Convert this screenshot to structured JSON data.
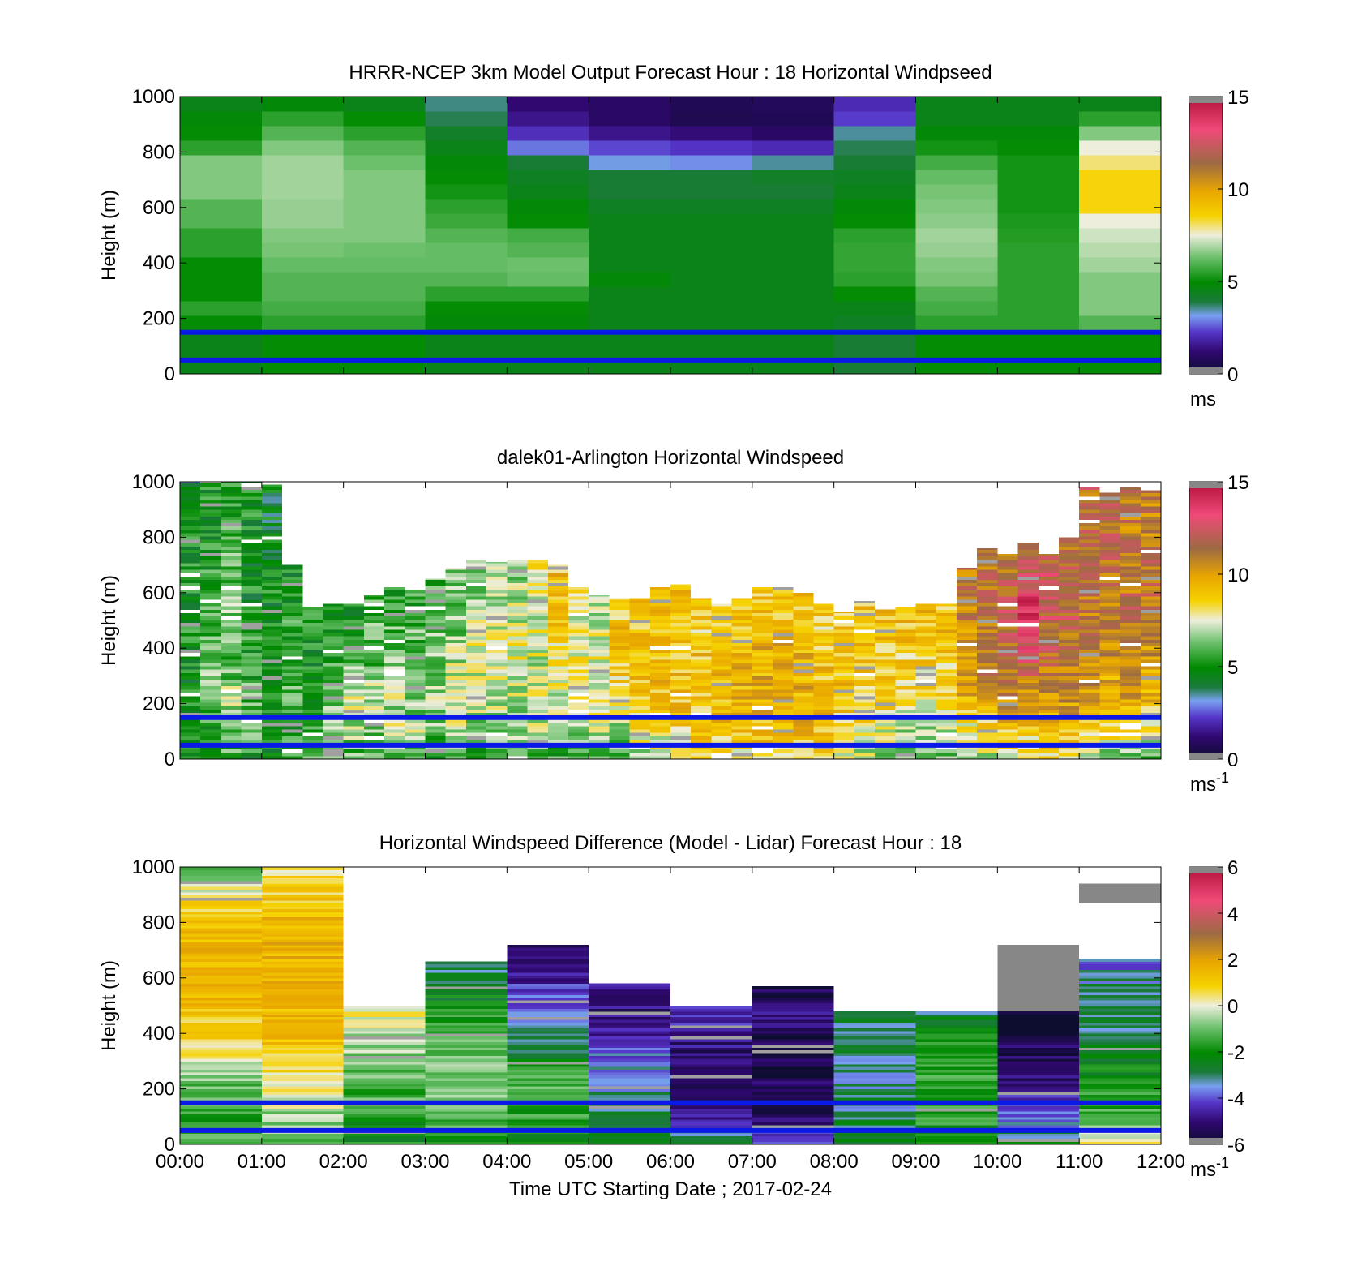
{
  "chart_data": [
    {
      "type": "heatmap",
      "title": "HRRR-NCEP 3km Model Output   Forecast Hour : 18 Horizontal Windpseed",
      "xlabel": "",
      "ylabel": "Height (m)",
      "xlim": [
        0,
        12
      ],
      "ylim": [
        0,
        1000
      ],
      "yticks": [
        "0",
        "200",
        "400",
        "600",
        "800",
        "1000"
      ],
      "colorbar": {
        "ticks": [
          "0",
          "5",
          "10",
          "15"
        ],
        "range": [
          0,
          15
        ],
        "unit": "ms"
      },
      "reference_lines_m": [
        150,
        50
      ],
      "grid": false,
      "hour_columns": [
        [
          4.5,
          4.5,
          4.5,
          5.0,
          5.5,
          5.0,
          5.0,
          5.0,
          5.5,
          5.5,
          6.0,
          6.0,
          6.5,
          6.5,
          6.5,
          5.5,
          5.0,
          4.8,
          4.5
        ],
        [
          5.0,
          5.0,
          5.0,
          5.5,
          5.8,
          6.0,
          6.0,
          6.2,
          6.4,
          6.5,
          6.7,
          6.7,
          6.8,
          6.8,
          6.8,
          6.5,
          6.0,
          5.5,
          4.8
        ],
        [
          5.0,
          5.0,
          5.0,
          5.5,
          5.8,
          6.0,
          6.0,
          6.2,
          6.3,
          6.5,
          6.5,
          6.5,
          6.5,
          6.5,
          6.3,
          6.0,
          5.5,
          5.0,
          4.5
        ],
        [
          4.5,
          4.5,
          4.5,
          4.8,
          5.0,
          5.5,
          6.0,
          6.2,
          6.2,
          6.0,
          5.7,
          5.5,
          5.2,
          5.0,
          4.8,
          4.5,
          4.2,
          3.8,
          3.6
        ],
        [
          4.5,
          4.5,
          4.5,
          4.8,
          5.0,
          5.5,
          6.2,
          6.3,
          6.0,
          5.8,
          5.0,
          4.8,
          4.5,
          4.3,
          4.0,
          2.8,
          2.1,
          1.5,
          1.2
        ],
        [
          4.5,
          4.5,
          4.5,
          4.5,
          4.5,
          4.5,
          4.8,
          4.5,
          4.5,
          4.5,
          4.5,
          4.3,
          4.0,
          4.0,
          3.2,
          2.4,
          1.5,
          1.0,
          1.0
        ],
        [
          4.5,
          4.5,
          4.5,
          4.5,
          4.5,
          4.5,
          4.5,
          4.5,
          4.5,
          4.5,
          4.5,
          4.3,
          4.0,
          4.0,
          3.0,
          2.2,
          1.3,
          0.6,
          0.7
        ],
        [
          4.5,
          4.5,
          4.5,
          4.5,
          4.5,
          4.5,
          4.5,
          4.5,
          4.5,
          4.5,
          4.5,
          4.3,
          4.0,
          4.2,
          3.5,
          2.0,
          1.0,
          0.7,
          0.8
        ],
        [
          4.0,
          4.0,
          4.0,
          4.3,
          4.5,
          5.0,
          5.5,
          5.6,
          5.6,
          5.5,
          5.0,
          4.8,
          4.5,
          4.3,
          4.0,
          3.8,
          3.5,
          2.3,
          2.0
        ],
        [
          5.0,
          5.0,
          5.0,
          5.5,
          5.8,
          6.0,
          6.4,
          6.5,
          6.7,
          6.8,
          6.6,
          6.5,
          6.4,
          6.2,
          5.8,
          5.2,
          4.8,
          4.5,
          4.5
        ],
        [
          5.0,
          5.0,
          5.0,
          5.5,
          5.5,
          5.5,
          5.5,
          5.5,
          5.5,
          5.4,
          5.3,
          5.2,
          5.2,
          5.2,
          5.2,
          5.0,
          4.8,
          4.5,
          4.5
        ],
        [
          5.0,
          5.0,
          5.0,
          6.0,
          6.5,
          6.5,
          6.5,
          6.8,
          7.0,
          7.2,
          7.5,
          8.5,
          8.5,
          8.5,
          8.0,
          7.5,
          6.5,
          5.5,
          4.5
        ]
      ]
    },
    {
      "type": "heatmap",
      "title": "dalek01-Arlington  Horizontal Windspeed",
      "xlabel": "",
      "ylabel": "Height (m)",
      "xlim": [
        0,
        12
      ],
      "ylim": [
        0,
        1000
      ],
      "yticks": [
        "0",
        "200",
        "400",
        "600",
        "800",
        "1000"
      ],
      "colorbar": {
        "ticks": [
          "0",
          "5",
          "10",
          "15"
        ],
        "range": [
          0,
          15
        ],
        "unit": "ms",
        "unit_exponent": "-1"
      },
      "reference_lines_m": [
        150,
        50
      ],
      "grid": false,
      "profiles": [
        {
          "t": 0.0,
          "top": 1000,
          "v": [
            5.0,
            5.0,
            5.0,
            5.0,
            5.0,
            5.0,
            5.0,
            5.0,
            5.0,
            4.0
          ]
        },
        {
          "t": 0.25,
          "top": 1000,
          "v": [
            5.0,
            5.5,
            6.0,
            6.5,
            6.0,
            6.0,
            5.5,
            5.0,
            5.0,
            5.0
          ]
        },
        {
          "t": 0.5,
          "top": 1000,
          "v": [
            6.0,
            6.5,
            7.0,
            6.0,
            6.0,
            6.5,
            6.0,
            6.0,
            5.5,
            5.0
          ]
        },
        {
          "t": 0.75,
          "top": 1000,
          "v": [
            5.0,
            6.0,
            6.0,
            5.5,
            5.5,
            5.0,
            5.0,
            5.0,
            5.0,
            5.0
          ]
        },
        {
          "t": 1.0,
          "top": 990,
          "v": [
            5.0,
            5.0,
            5.5,
            5.0,
            5.0,
            5.0,
            5.0,
            4.5,
            4.5,
            4.5
          ]
        },
        {
          "t": 1.25,
          "top": 700,
          "v": [
            6.0,
            5.0,
            6.0,
            5.5,
            5.5,
            5.0,
            5.0
          ]
        },
        {
          "t": 1.5,
          "top": 550,
          "v": [
            6.0,
            6.0,
            5.5,
            5.0,
            5.0,
            5.0
          ]
        },
        {
          "t": 1.75,
          "top": 560,
          "v": [
            6.0,
            6.5,
            6.0,
            5.5,
            5.0,
            5.0
          ]
        },
        {
          "t": 2.0,
          "top": 560,
          "v": [
            6.0,
            7.0,
            7.0,
            6.5,
            5.0,
            5.0
          ]
        },
        {
          "t": 2.25,
          "top": 590,
          "v": [
            6.0,
            6.5,
            7.0,
            6.0,
            6.0,
            6.0
          ]
        },
        {
          "t": 2.5,
          "top": 620,
          "v": [
            6.0,
            7.0,
            7.0,
            6.5,
            6.0,
            6.0,
            5.0
          ]
        },
        {
          "t": 2.75,
          "top": 610,
          "v": [
            6.0,
            7.0,
            6.5,
            6.5,
            6.0,
            6.0,
            5.5
          ]
        },
        {
          "t": 3.0,
          "top": 650,
          "v": [
            5.5,
            6.5,
            7.0,
            6.5,
            6.5,
            6.0,
            6.0
          ]
        },
        {
          "t": 3.25,
          "top": 690,
          "v": [
            5.5,
            7.0,
            7.0,
            7.0,
            6.5,
            6.5,
            6.5
          ]
        },
        {
          "t": 3.5,
          "top": 720,
          "v": [
            5.0,
            6.5,
            7.0,
            7.0,
            7.5,
            7.0,
            6.5,
            6.5
          ]
        },
        {
          "t": 3.75,
          "top": 710,
          "v": [
            5.5,
            6.5,
            7.0,
            7.5,
            7.5,
            7.0,
            7.0,
            6.5
          ]
        },
        {
          "t": 4.0,
          "top": 720,
          "v": [
            6.0,
            6.5,
            7.0,
            7.5,
            7.5,
            7.0,
            7.0,
            6.5
          ]
        },
        {
          "t": 4.25,
          "top": 720,
          "v": [
            6.0,
            7.0,
            7.5,
            7.0,
            7.5,
            7.5,
            7.5,
            8.0
          ]
        },
        {
          "t": 4.5,
          "top": 700,
          "v": [
            5.5,
            7.0,
            7.5,
            8.0,
            8.5,
            9.0,
            9.0
          ]
        },
        {
          "t": 4.75,
          "top": 620,
          "v": [
            6.0,
            7.0,
            7.5,
            8.0,
            7.5,
            7.5,
            8.0
          ]
        },
        {
          "t": 5.0,
          "top": 590,
          "v": [
            6.0,
            7.0,
            7.5,
            8.0,
            7.5,
            7.0,
            7.0
          ]
        },
        {
          "t": 5.25,
          "top": 580,
          "v": [
            6.0,
            7.0,
            8.0,
            9.0,
            9.0,
            8.5
          ]
        },
        {
          "t": 5.5,
          "top": 580,
          "v": [
            7.0,
            8.0,
            9.0,
            9.0,
            9.0,
            9.0
          ]
        },
        {
          "t": 5.75,
          "top": 620,
          "v": [
            7.0,
            8.0,
            9.0,
            9.0,
            9.0,
            9.0,
            9.0
          ]
        },
        {
          "t": 6.0,
          "top": 630,
          "v": [
            7.5,
            8.5,
            9.0,
            9.0,
            9.0,
            9.0,
            9.0
          ]
        },
        {
          "t": 6.25,
          "top": 580,
          "v": [
            8.0,
            9.0,
            9.0,
            9.0,
            8.5,
            9.0
          ]
        },
        {
          "t": 6.5,
          "top": 560,
          "v": [
            8.0,
            9.0,
            9.0,
            9.5,
            9.0,
            8.5
          ]
        },
        {
          "t": 6.75,
          "top": 580,
          "v": [
            8.0,
            9.0,
            9.5,
            9.5,
            9.0,
            9.0
          ]
        },
        {
          "t": 7.0,
          "top": 620,
          "v": [
            8.5,
            9.0,
            10.0,
            9.5,
            9.5,
            9.0,
            9.0
          ]
        },
        {
          "t": 7.25,
          "top": 620,
          "v": [
            8.5,
            9.0,
            10.0,
            10.0,
            9.5,
            9.0,
            9.0
          ]
        },
        {
          "t": 7.5,
          "top": 600,
          "v": [
            8.5,
            9.5,
            9.5,
            9.5,
            9.0,
            9.0
          ]
        },
        {
          "t": 7.75,
          "top": 560,
          "v": [
            8.0,
            9.0,
            9.0,
            9.0,
            8.5,
            8.5
          ]
        },
        {
          "t": 8.0,
          "top": 530,
          "v": [
            7.0,
            8.5,
            9.0,
            9.0,
            9.0
          ]
        },
        {
          "t": 8.25,
          "top": 570,
          "v": [
            7.0,
            8.0,
            8.5,
            9.0,
            9.0,
            9.0
          ]
        },
        {
          "t": 8.5,
          "top": 540,
          "v": [
            6.5,
            7.5,
            8.5,
            8.5,
            9.0,
            9.0
          ]
        },
        {
          "t": 8.75,
          "top": 550,
          "v": [
            6.5,
            7.0,
            8.0,
            8.5,
            9.0,
            9.0
          ]
        },
        {
          "t": 9.0,
          "top": 560,
          "v": [
            6.0,
            7.0,
            8.0,
            8.5,
            9.0,
            9.0
          ]
        },
        {
          "t": 9.25,
          "top": 560,
          "v": [
            6.0,
            7.0,
            8.0,
            8.5,
            9.0,
            9.0
          ]
        },
        {
          "t": 9.5,
          "top": 690,
          "v": [
            6.5,
            8.0,
            9.5,
            10.0,
            10.5,
            11.0,
            11.0
          ]
        },
        {
          "t": 9.75,
          "top": 760,
          "v": [
            7.0,
            8.5,
            10.0,
            11.0,
            11.0,
            11.5,
            11.5,
            11.0
          ]
        },
        {
          "t": 10.0,
          "top": 740,
          "v": [
            7.0,
            9.0,
            10.5,
            11.0,
            11.5,
            12.0,
            11.5,
            11.0
          ]
        },
        {
          "t": 10.25,
          "top": 780,
          "v": [
            7.5,
            9.0,
            10.5,
            12.0,
            13.5,
            14.0,
            12.0,
            11.0
          ]
        },
        {
          "t": 10.5,
          "top": 740,
          "v": [
            8.0,
            9.5,
            10.5,
            11.5,
            12.0,
            12.5,
            11.5
          ]
        },
        {
          "t": 10.75,
          "top": 800,
          "v": [
            7.5,
            9.5,
            10.5,
            11.0,
            11.5,
            12.0,
            11.5,
            11.0
          ]
        },
        {
          "t": 11.0,
          "top": 980,
          "v": [
            7.0,
            9.0,
            10.0,
            10.5,
            11.0,
            11.0,
            11.0,
            11.5,
            11.5,
            11.5
          ]
        },
        {
          "t": 11.25,
          "top": 960,
          "v": [
            6.5,
            8.5,
            9.5,
            10.0,
            10.5,
            11.0,
            11.0,
            11.5,
            11.5,
            11.5
          ]
        },
        {
          "t": 11.5,
          "top": 980,
          "v": [
            6.5,
            8.5,
            10.0,
            10.5,
            11.0,
            11.5,
            11.0,
            11.0,
            11.0,
            11.5
          ]
        },
        {
          "t": 11.75,
          "top": 970,
          "v": [
            6.0,
            8.0,
            9.5,
            10.0,
            10.5,
            11.0,
            11.5,
            11.0,
            11.0,
            11.0
          ]
        }
      ]
    },
    {
      "type": "heatmap",
      "title": "Horizontal Windspeed Difference (Model - Lidar) Forecast Hour : 18",
      "xlabel": "Time UTC  Starting Date ; 2017-02-24",
      "ylabel": "Height (m)",
      "xlim": [
        0,
        12
      ],
      "ylim": [
        0,
        1000
      ],
      "xticks": [
        "00:00",
        "01:00",
        "02:00",
        "03:00",
        "04:00",
        "05:00",
        "06:00",
        "07:00",
        "08:00",
        "09:00",
        "10:00",
        "11:00",
        "12:00"
      ],
      "yticks": [
        "0",
        "200",
        "400",
        "600",
        "800",
        "1000"
      ],
      "colorbar": {
        "ticks": [
          "-6",
          "-4",
          "-2",
          "0",
          "2",
          "4",
          "6"
        ],
        "range": [
          -6,
          6
        ],
        "unit": "ms",
        "unit_exponent": "-1"
      },
      "reference_lines_m": [
        150,
        50
      ],
      "grid": false,
      "profiles": [
        {
          "t": 0,
          "top": 1000,
          "v": [
            -1.5,
            -1.5,
            -1.0,
            0.5,
            1.0,
            1.5,
            1.5,
            1.5,
            0.5,
            -1.5
          ]
        },
        {
          "t": 1,
          "top": 1000,
          "v": [
            -1.0,
            -0.5,
            0.5,
            1.0,
            1.5,
            1.5,
            1.5,
            1.5,
            1.0,
            0.5
          ]
        },
        {
          "t": 2,
          "top": 500,
          "v": [
            -2.0,
            -1.5,
            -1.0,
            -0.5,
            0.5
          ]
        },
        {
          "t": 3,
          "top": 660,
          "v": [
            -2.0,
            -1.0,
            -0.5,
            -1.0,
            -1.5,
            -2.5,
            -3.0
          ]
        },
        {
          "t": 4,
          "top": 720,
          "v": [
            -2.0,
            -1.5,
            -1.0,
            -3.0,
            -4.0,
            -4.5,
            -5.0
          ]
        },
        {
          "t": 5,
          "top": 580,
          "v": [
            -2.0,
            -3.0,
            -3.5,
            -4.0,
            -5.0,
            -4.5
          ]
        },
        {
          "t": 6,
          "top": 500,
          "v": [
            -3.0,
            -5.0,
            -5.0,
            -5.0,
            -4.0
          ]
        },
        {
          "t": 7,
          "top": 570,
          "v": [
            -4.0,
            -5.5,
            -5.5,
            -5.5,
            -5.0,
            -5.5
          ]
        },
        {
          "t": 8,
          "top": 480,
          "v": [
            -2.5,
            -3.0,
            -3.0,
            -3.0,
            -3.0
          ]
        },
        {
          "t": 9,
          "top": 480,
          "v": [
            -2.0,
            -1.5,
            -1.5,
            -2.0,
            -3.0
          ]
        },
        {
          "t": 10,
          "top": 480,
          "v": [
            -2.5,
            -4.0,
            -5.0,
            -5.5,
            -6.0
          ],
          "grey_above_to": 720
        },
        {
          "t": 11,
          "top": 670,
          "v": [
            0.5,
            -1.5,
            -2.0,
            -2.5,
            -3.0,
            -3.0,
            -4.0
          ],
          "grey_band": [
            870,
            940
          ]
        }
      ]
    }
  ]
}
